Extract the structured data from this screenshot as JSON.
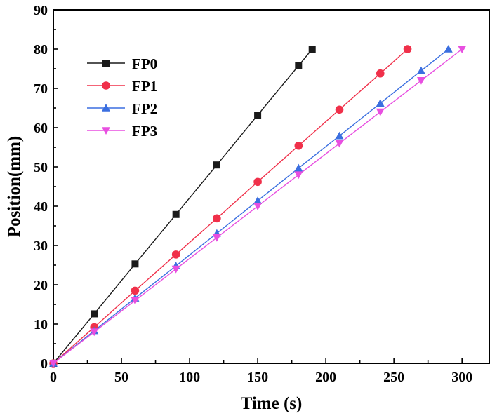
{
  "chart_data": {
    "type": "line",
    "xlabel": "Time (s)",
    "ylabel": "Position(mm)",
    "xlim": [
      0,
      320
    ],
    "ylim": [
      0,
      90
    ],
    "xticks": [
      0,
      50,
      100,
      150,
      200,
      250,
      300
    ],
    "yticks": [
      0,
      10,
      20,
      30,
      40,
      50,
      60,
      70,
      80,
      90
    ],
    "grid": false,
    "legend_position": "top-left",
    "series": [
      {
        "name": "FP0",
        "color": "#1a1a1a",
        "marker": "square",
        "x": [
          0,
          30,
          60,
          90,
          120,
          150,
          180,
          190
        ],
        "y": [
          0,
          12.6,
          25.3,
          37.9,
          50.5,
          63.2,
          75.8,
          80
        ]
      },
      {
        "name": "FP1",
        "color": "#f0304a",
        "marker": "circle",
        "x": [
          0,
          30,
          60,
          90,
          120,
          150,
          180,
          210,
          240,
          260
        ],
        "y": [
          0,
          9.2,
          18.5,
          27.7,
          36.9,
          46.2,
          55.4,
          64.6,
          73.8,
          80
        ]
      },
      {
        "name": "FP2",
        "color": "#3b6fe0",
        "marker": "triangle-up",
        "x": [
          0,
          30,
          60,
          90,
          120,
          150,
          180,
          210,
          240,
          270,
          290
        ],
        "y": [
          0,
          8.3,
          16.6,
          24.8,
          33.1,
          41.4,
          49.7,
          57.9,
          66.2,
          74.5,
          80
        ]
      },
      {
        "name": "FP3",
        "color": "#e84fe0",
        "marker": "triangle-down",
        "x": [
          0,
          30,
          60,
          90,
          120,
          150,
          180,
          210,
          240,
          270,
          300
        ],
        "y": [
          0,
          8,
          16,
          24,
          32,
          40,
          48,
          56,
          64,
          72,
          80
        ]
      }
    ]
  }
}
